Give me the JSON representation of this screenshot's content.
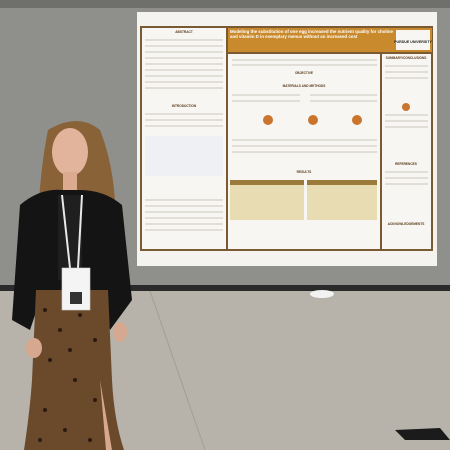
{
  "poster": {
    "title": "Modeling the substitution of one egg increased the nutrient quality for choline and vitamin D in exemplary menus without an increased cost",
    "logo": "PURDUE UNIVERSITY",
    "sections": {
      "abstract": "ABSTRACT",
      "introduction": "INTRODUCTION",
      "objective": "OBJECTIVE",
      "methods": "MATERIALS AND METHODS",
      "results": "RESULTS",
      "conclusions": "SUMMARY/CONCLUSIONS",
      "references": "REFERENCES",
      "acknowledgements": "ACKNOWLEDGEMENTS"
    }
  }
}
